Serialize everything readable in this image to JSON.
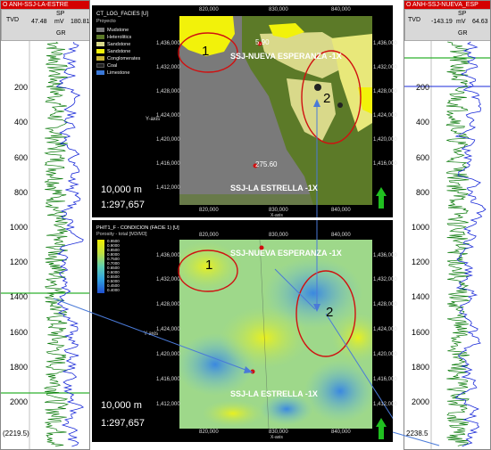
{
  "left_well": {
    "title": "O ANH-SSJ-LA-ESTRE",
    "col_tvd": "TVD",
    "col_sp": "SP",
    "sp_min": "47.48",
    "sp_unit": "mV",
    "sp_max": "180.81",
    "col_gr": "GR",
    "depths": [
      "200",
      "400",
      "600",
      "800",
      "1000",
      "1200",
      "1400",
      "1600",
      "1800",
      "2000"
    ],
    "bottom_value": "(2219.5)"
  },
  "right_well": {
    "title": "O ANH-SSJ-NUEVA_ESP",
    "col_tvd": "TVD",
    "col_sp": "SP",
    "sp_min": "-143.19",
    "sp_unit": "mV",
    "sp_max": "64.63",
    "col_gr": "GR",
    "depths": [
      "200",
      "400",
      "600",
      "800",
      "1000",
      "1200",
      "1400",
      "1600",
      "1800",
      "2000"
    ],
    "bottom_value": "2238.5"
  },
  "top_map": {
    "property": "CT_LOG_FACIES [U]",
    "subtitle": "Proyecto",
    "legend": [
      {
        "name": "Mudstone",
        "color": "#7a7a7a"
      },
      {
        "name": "Heterolitics",
        "color": "#5c7a28"
      },
      {
        "name": "Sandstone",
        "color": "#d9d98a"
      },
      {
        "name": "Sandstone",
        "color": "#f2f20a"
      },
      {
        "name": "Conglomerates",
        "color": "#c8b432"
      },
      {
        "name": "Coal",
        "color": "#222222"
      },
      {
        "name": "Limestone",
        "color": "#3a78d8"
      }
    ],
    "x_ticks": [
      "820,000",
      "830,000",
      "840,000"
    ],
    "y_ticks": [
      "1,436,000",
      "1,432,000",
      "1,428,000",
      "1,424,000",
      "1,420,000",
      "1,416,000",
      "1,412,000"
    ],
    "x_axis": "X-axis",
    "y_axis": "Y-axis",
    "well_top": "SSJ-NUEVA ESPERANZA -1X",
    "well_top_value": "5.90",
    "well_bottom": "SSJ-LA ESTRELLA -1X",
    "well_bottom_value": "275.60",
    "scale_text": "10,000 m",
    "ratio": "1:297,657",
    "marker1": "1",
    "marker2": "2"
  },
  "bottom_map": {
    "property": "PHIT1_F - CONDICION (FACIE 1) [U]",
    "subtitle": "Porosity - total [M3/M3]",
    "colorbar": [
      "0.9500",
      "0.9000",
      "0.8500",
      "0.8000",
      "0.7500",
      "0.7000",
      "0.6500",
      "0.6000",
      "0.5500",
      "0.5000",
      "0.4500",
      "0.4000"
    ],
    "x_ticks": [
      "820,000",
      "830,000",
      "840,000"
    ],
    "y_ticks": [
      "1,436,000",
      "1,432,000",
      "1,428,000",
      "1,424,000",
      "1,420,000",
      "1,416,000",
      "1,412,000"
    ],
    "x_axis": "X-axis",
    "y_axis": "Y-axis",
    "well_top": "SSJ-NUEVA ESPERANZA -1X",
    "well_bottom": "SSJ-LA ESTRELLA -1X",
    "scale_text": "10,000 m",
    "ratio": "1:297,657",
    "marker1": "1",
    "marker2": "2"
  }
}
